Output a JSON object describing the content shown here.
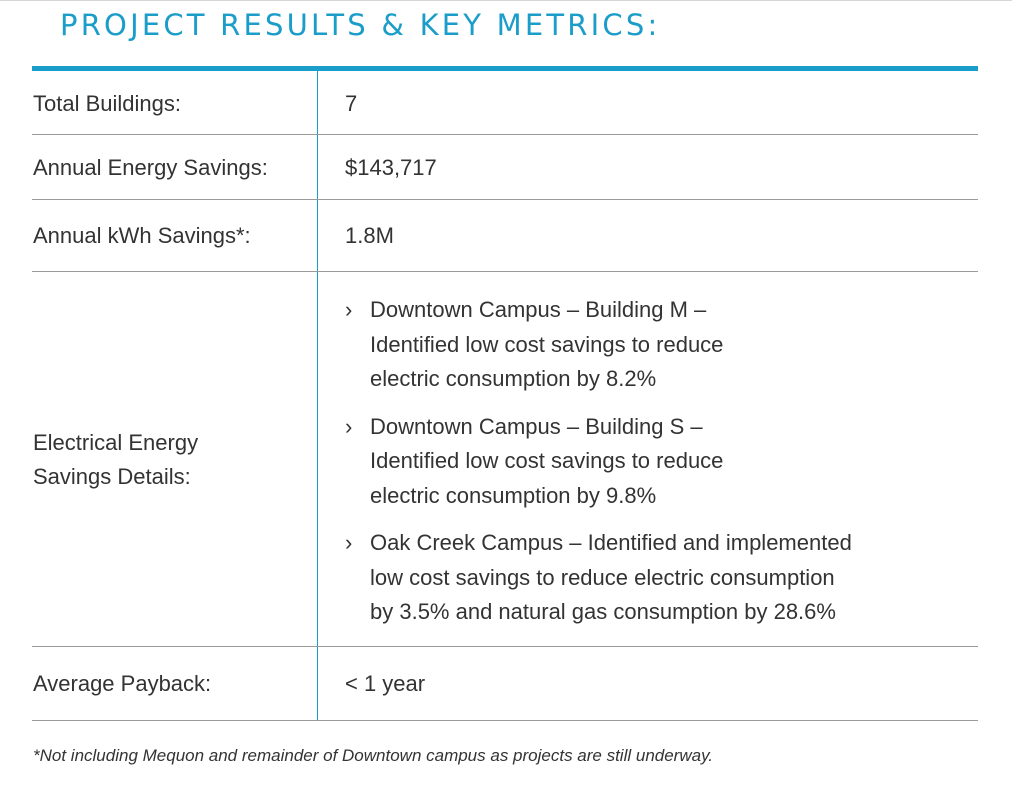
{
  "heading": "PROJECT RESULTS & KEY METRICS:",
  "rows": {
    "total_buildings": {
      "label": "Total Buildings:",
      "value": "7"
    },
    "annual_energy_savings": {
      "label": "Annual Energy Savings:",
      "value": "$143,717"
    },
    "annual_kwh_savings": {
      "label": "Annual kWh Savings*:",
      "value": "1.8M"
    },
    "electrical_details": {
      "label_line1": "Electrical Energy",
      "label_line2": "Savings Details:",
      "bullets": [
        {
          "line1": "Downtown Campus – Building M –",
          "line2": "Identified low cost savings to reduce",
          "line3": "electric consumption by 8.2%"
        },
        {
          "line1": "Downtown Campus – Building S –",
          "line2": "Identified low cost savings to reduce",
          "line3": "electric consumption by 9.8%"
        },
        {
          "line1": "Oak Creek Campus – Identified and implemented",
          "line2": "low cost savings to reduce electric consumption",
          "line3": "by 3.5% and natural gas consumption by 28.6%"
        }
      ]
    },
    "average_payback": {
      "label": "Average Payback:",
      "value": "< 1 year"
    }
  },
  "bullet_marker": "›",
  "footnote": "*Not including Mequon and remainder of Downtown campus as projects are still underway.",
  "colors": {
    "accent": "#1b9dc9",
    "text": "#333333",
    "row_rule": "#9a9a9a"
  }
}
